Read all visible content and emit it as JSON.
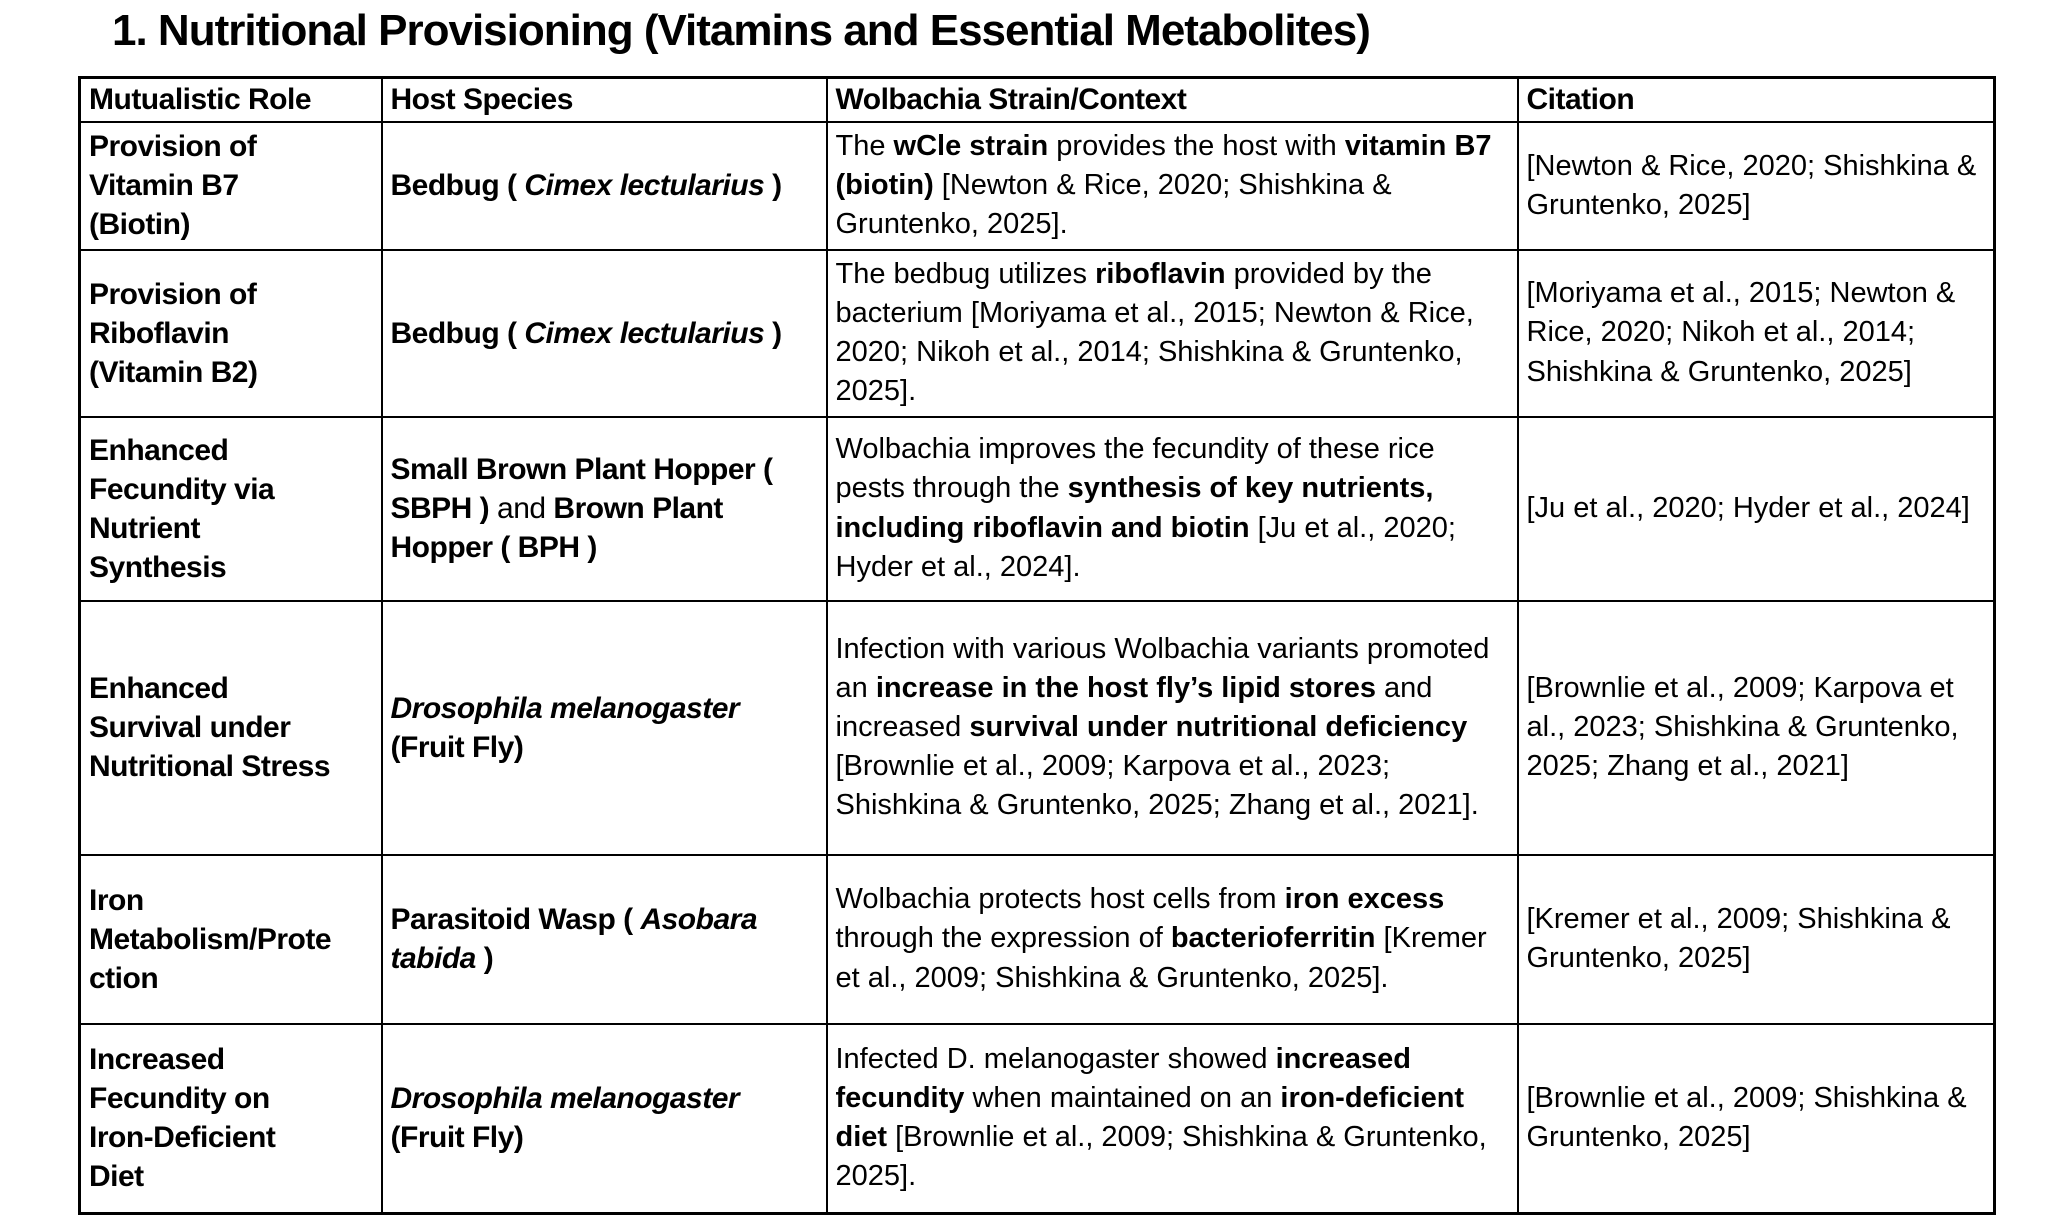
{
  "title": "1. Nutritional Provisioning (Vitamins and Essential Metabolites)",
  "colors": {
    "text": "#000000",
    "border": "#000000",
    "background": "#ffffff"
  },
  "table": {
    "headers": [
      "Mutualistic Role",
      "Host Species",
      "Wolbachia Strain/Context",
      "Citation"
    ],
    "rows": [
      {
        "role": [
          {
            "t": "Provision of Vitamin B7 (Biotin)",
            "b": true
          }
        ],
        "host": [
          {
            "t": "Bedbug ( ",
            "b": true
          },
          {
            "t": "Cimex lectularius",
            "b": true,
            "i": true
          },
          {
            "t": " )",
            "b": true
          }
        ],
        "context": [
          {
            "t": "The "
          },
          {
            "t": "wCle strain",
            "b": true
          },
          {
            "t": " provides the host with "
          },
          {
            "t": "vitamin B7 (biotin)",
            "b": true
          },
          {
            "t": " [Newton & Rice, 2020; Shishkina & Gruntenko, 2025]."
          }
        ],
        "citation": [
          {
            "t": "[Newton & Rice, 2020; Shishkina & Gruntenko, 2025]"
          }
        ]
      },
      {
        "role": [
          {
            "t": "Provision of Riboflavin (Vitamin B2)",
            "b": true
          }
        ],
        "host": [
          {
            "t": "Bedbug ( ",
            "b": true
          },
          {
            "t": "Cimex lectularius",
            "b": true,
            "i": true
          },
          {
            "t": " )",
            "b": true
          }
        ],
        "context": [
          {
            "t": "The bedbug utilizes "
          },
          {
            "t": "riboflavin",
            "b": true
          },
          {
            "t": " provided by the bacterium [Moriyama et al., 2015; Newton & Rice, 2020; Nikoh et al., 2014; Shishkina & Gruntenko, 2025]."
          }
        ],
        "citation": [
          {
            "t": "[Moriyama et al., 2015; Newton & Rice, 2020; Nikoh et al., 2014; Shishkina & Gruntenko, 2025]"
          }
        ]
      },
      {
        "role": [
          {
            "t": "Enhanced Fecundity via Nutrient Synthesis",
            "b": true
          }
        ],
        "host": [
          {
            "t": "Small Brown Plant Hopper ( SBPH ) ",
            "b": true
          },
          {
            "t": "and "
          },
          {
            "t": "Brown Plant Hopper ( BPH )",
            "b": true
          }
        ],
        "context": [
          {
            "t": "Wolbachia improves the fecundity of these rice pests through the "
          },
          {
            "t": "synthesis of key nutrients, including riboflavin and biotin",
            "b": true
          },
          {
            "t": " [Ju et al., 2020; Hyder et al., 2024]."
          }
        ],
        "citation": [
          {
            "t": "[Ju et al., 2020; Hyder et al., 2024]"
          }
        ]
      },
      {
        "role": [
          {
            "t": "Enhanced Survival under Nutritional Stress",
            "b": true
          }
        ],
        "host": [
          {
            "t": "Drosophila melanogaster",
            "b": true,
            "i": true
          },
          {
            "t": " (Fruit Fly)",
            "b": true
          }
        ],
        "context": [
          {
            "t": "Infection with various Wolbachia variants promoted an "
          },
          {
            "t": "increase in the host fly’s lipid stores",
            "b": true
          },
          {
            "t": " and increased "
          },
          {
            "t": "survival under nutritional deficiency",
            "b": true
          },
          {
            "t": " [Brownlie et al., 2009; Karpova et al., 2023; Shishkina & Gruntenko, 2025; Zhang et al., 2021]."
          }
        ],
        "citation": [
          {
            "t": "[Brownlie et al., 2009; Karpova et al., 2023; Shishkina & Gruntenko, 2025; Zhang et al., 2021]"
          }
        ]
      },
      {
        "role": [
          {
            "t": "Iron Metabolism/Protection",
            "b": true
          }
        ],
        "host": [
          {
            "t": "Parasitoid Wasp ( ",
            "b": true
          },
          {
            "t": "Asobara tabida",
            "b": true,
            "i": true
          },
          {
            "t": " )",
            "b": true
          }
        ],
        "context": [
          {
            "t": "Wolbachia protects host cells from "
          },
          {
            "t": "iron excess",
            "b": true
          },
          {
            "t": " through the expression of "
          },
          {
            "t": "bacterioferritin",
            "b": true
          },
          {
            "t": " [Kremer et al., 2009; Shishkina & Gruntenko, 2025]."
          }
        ],
        "citation": [
          {
            "t": "[Kremer et al., 2009; Shishkina & Gruntenko, 2025]"
          }
        ]
      },
      {
        "role": [
          {
            "t": "Increased Fecundity on Iron-Deficient Diet",
            "b": true
          }
        ],
        "host": [
          {
            "t": "Drosophila melanogaster",
            "b": true,
            "i": true
          },
          {
            "t": " (Fruit Fly)",
            "b": true
          }
        ],
        "context": [
          {
            "t": "Infected D. melanogaster showed "
          },
          {
            "t": "increased fecundity",
            "b": true
          },
          {
            "t": " when maintained on an "
          },
          {
            "t": "iron-deficient diet",
            "b": true
          },
          {
            "t": " [Brownlie et al., 2009; Shishkina & Gruntenko, 2025]."
          }
        ],
        "citation": [
          {
            "t": "[Brownlie et al., 2009; Shishkina & Gruntenko, 2025]"
          }
        ]
      }
    ]
  }
}
